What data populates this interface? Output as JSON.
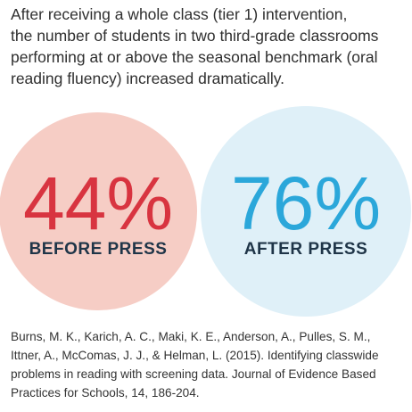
{
  "intro": [
    "After receiving a whole class (tier 1) intervention,",
    "the number of students in two third-grade classrooms",
    "performing at or above the seasonal benchmark (oral",
    "reading fluency) increased dramatically."
  ],
  "stats": [
    {
      "value": "44%",
      "label": "BEFORE PRESS"
    },
    {
      "value": "76%",
      "label": "AFTER PRESS"
    }
  ],
  "citation": [
    "Burns, M. K., Karich, A. C., Maki, K. E., Anderson, A., Pulles, S. M.,",
    "Ittner, A., McComas, J. J., & Helman, L. (2015). Identifying classwide",
    "problems in reading with screening data. Journal of Evidence Based",
    "Practices for Schools, 14, 186-204."
  ]
}
